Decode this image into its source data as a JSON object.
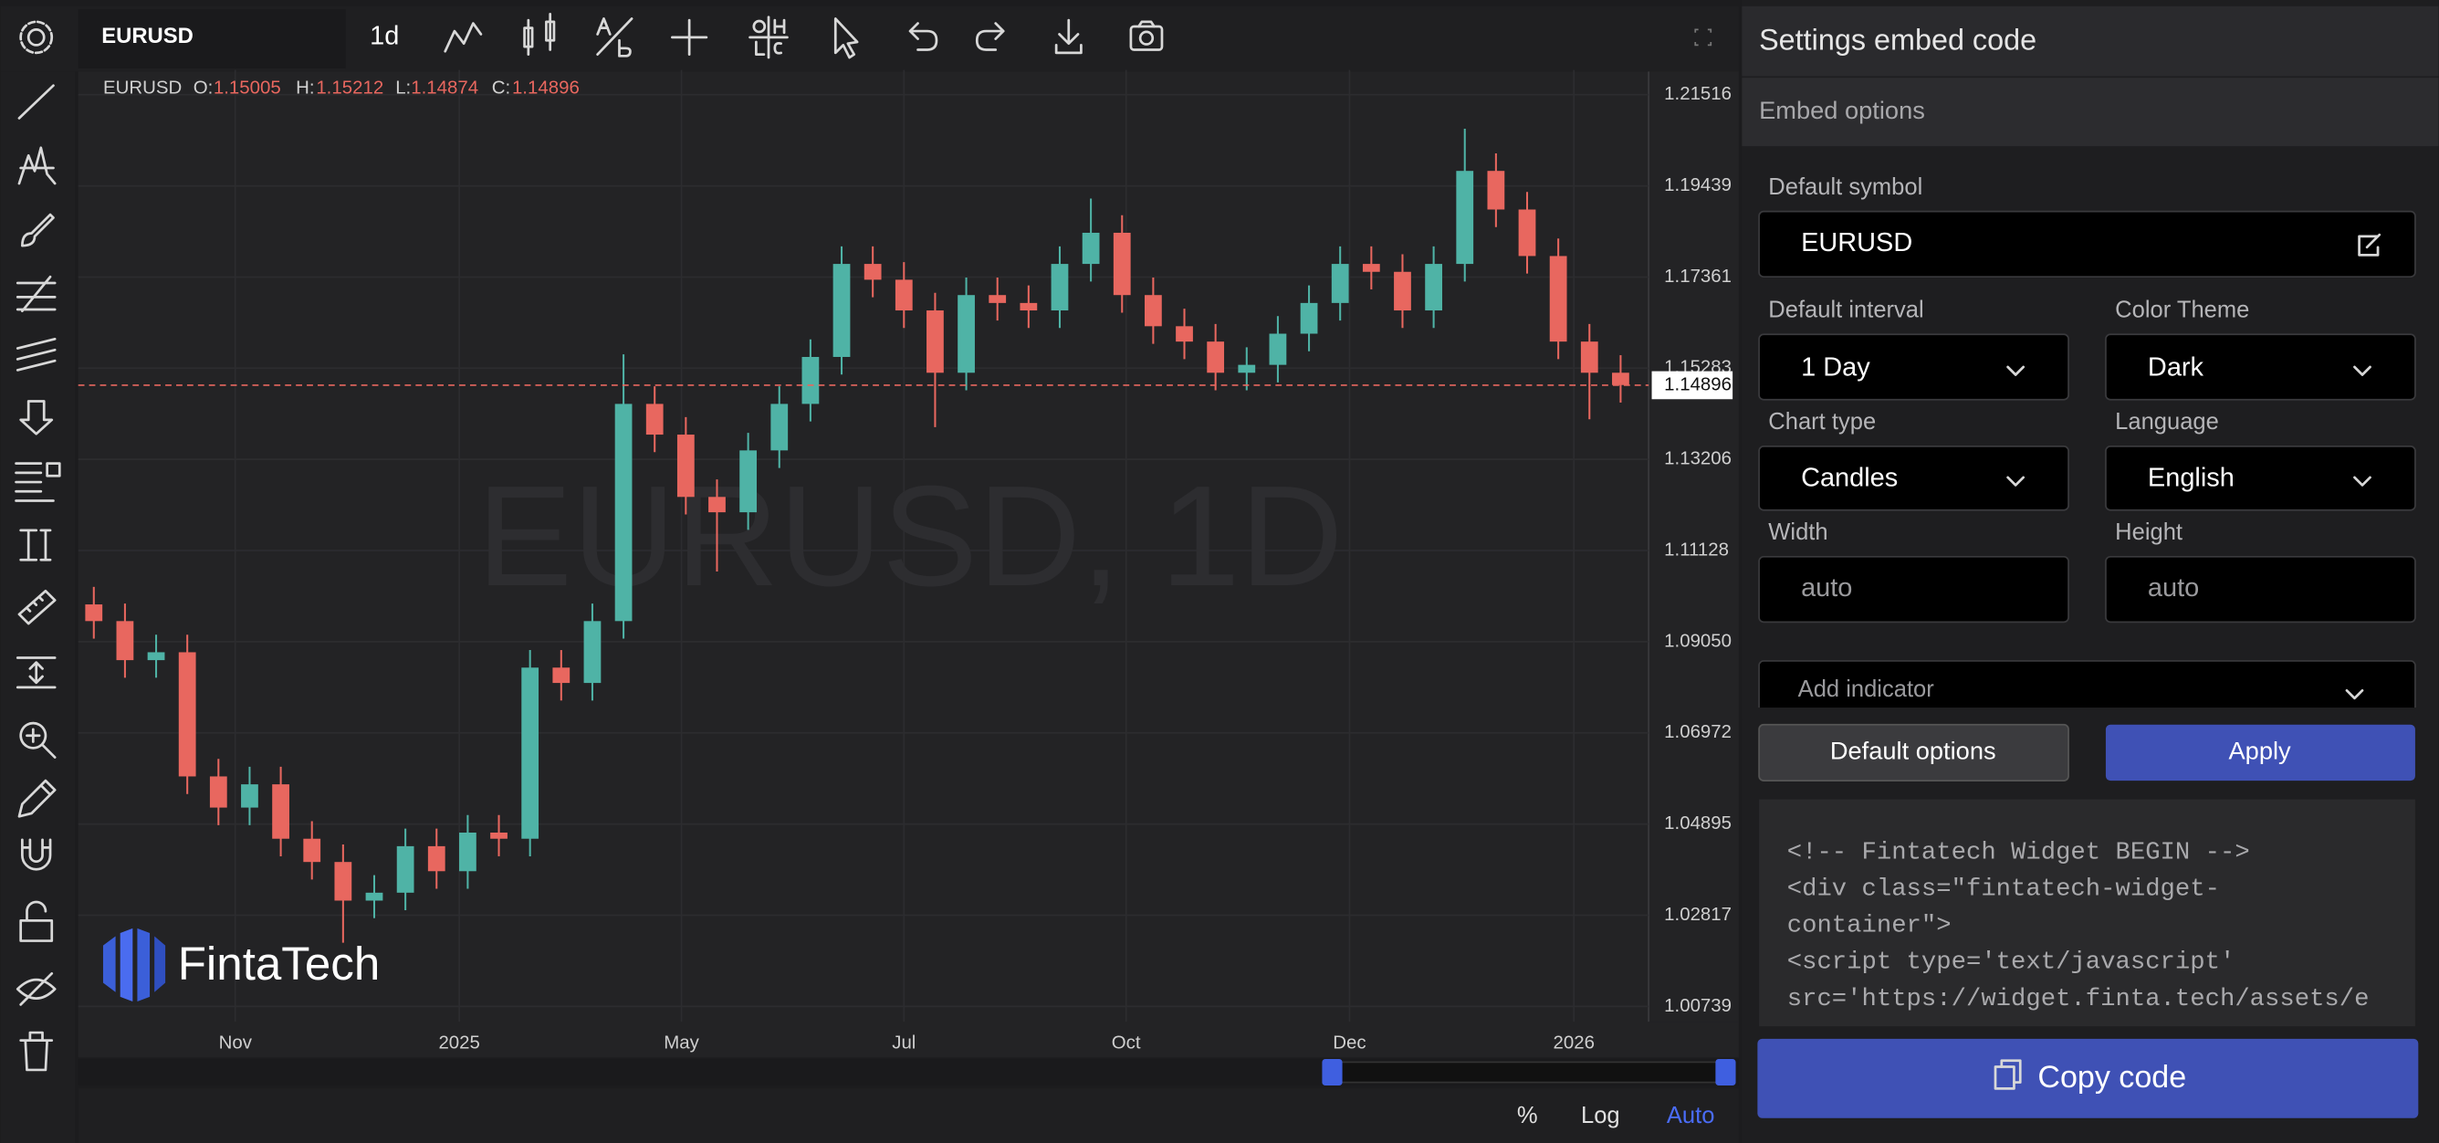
{
  "toolbar": {
    "symbol": "EURUSD",
    "interval": "1d"
  },
  "chart_data": {
    "type": "candlestick",
    "symbol": "EURUSD",
    "ohlc": [
      {
        "label": "O:",
        "value": 1.15005
      },
      {
        "label": "H:",
        "value": 1.15212
      },
      {
        "label": "L:",
        "value": 1.14874
      },
      {
        "label": "C:",
        "value": 1.14896
      }
    ],
    "watermark": "EURUSD, 1D",
    "brand": "FintaTech",
    "up_color": "#4fb3a6",
    "down_color": "#e8675f",
    "x": [
      0,
      1,
      2,
      3,
      4,
      5,
      6,
      7,
      8,
      9,
      10,
      11,
      12,
      13,
      14,
      15,
      16,
      17,
      18,
      19,
      20,
      21,
      22,
      23,
      24,
      25,
      26,
      27,
      28,
      29,
      30,
      31,
      32,
      33,
      34,
      35,
      36,
      37,
      38,
      39,
      40,
      41,
      42,
      43,
      44,
      45,
      46,
      47,
      48,
      49
    ],
    "open": [
      1.099,
      1.0952,
      1.0863,
      1.0881,
      1.0598,
      1.0527,
      1.058,
      1.0456,
      1.0403,
      1.0315,
      1.0333,
      1.0439,
      1.0382,
      1.047,
      1.0456,
      1.0846,
      1.0811,
      1.0952,
      1.1447,
      1.1377,
      1.1235,
      1.12,
      1.1341,
      1.1447,
      1.1554,
      1.1766,
      1.173,
      1.166,
      1.1518,
      1.1695,
      1.1677,
      1.166,
      1.1766,
      1.1837,
      1.1695,
      1.1624,
      1.1589,
      1.1518,
      1.1536,
      1.1607,
      1.1677,
      1.1766,
      1.1748,
      1.166,
      1.1766,
      1.1978,
      1.189,
      1.1784,
      1.1589,
      1.1518
    ],
    "high": [
      1.103,
      1.0992,
      1.0921,
      1.0921,
      1.0638,
      1.062,
      1.062,
      1.0496,
      1.0443,
      1.0373,
      1.0479,
      1.0479,
      1.051,
      1.051,
      1.0886,
      1.0886,
      1.0992,
      1.156,
      1.1487,
      1.1417,
      1.1275,
      1.1381,
      1.1487,
      1.1594,
      1.1806,
      1.1806,
      1.177,
      1.17,
      1.1735,
      1.1735,
      1.1717,
      1.1806,
      1.1915,
      1.1877,
      1.1735,
      1.1664,
      1.1629,
      1.1576,
      1.1647,
      1.1717,
      1.1806,
      1.1806,
      1.1788,
      1.1806,
      1.2074,
      1.2018,
      1.193,
      1.1824,
      1.1629,
      1.1558
    ],
    "low": [
      1.0912,
      1.0823,
      1.0823,
      1.0558,
      1.0487,
      1.0487,
      1.0416,
      1.0363,
      1.0219,
      1.0275,
      1.0293,
      1.0342,
      1.0342,
      1.0416,
      1.0416,
      1.0771,
      1.0771,
      1.0912,
      1.1337,
      1.1195,
      1.1065,
      1.116,
      1.1301,
      1.1407,
      1.1514,
      1.169,
      1.162,
      1.1394,
      1.1478,
      1.1637,
      1.162,
      1.162,
      1.1726,
      1.1655,
      1.1584,
      1.1549,
      1.1478,
      1.1478,
      1.1496,
      1.1567,
      1.1637,
      1.1708,
      1.162,
      1.162,
      1.1726,
      1.185,
      1.1744,
      1.1549,
      1.1412,
      1.145
    ],
    "close": [
      1.0952,
      1.0863,
      1.0881,
      1.0598,
      1.0527,
      1.058,
      1.0456,
      1.0403,
      1.0315,
      1.0333,
      1.0439,
      1.0382,
      1.047,
      1.0456,
      1.0846,
      1.0811,
      1.0952,
      1.1447,
      1.1377,
      1.1235,
      1.12,
      1.1341,
      1.1447,
      1.1554,
      1.1766,
      1.173,
      1.166,
      1.1518,
      1.1695,
      1.1677,
      1.166,
      1.1766,
      1.1837,
      1.1695,
      1.1624,
      1.1589,
      1.1518,
      1.1536,
      1.1607,
      1.1677,
      1.1766,
      1.1748,
      1.166,
      1.1766,
      1.1978,
      1.189,
      1.1784,
      1.1589,
      1.1518,
      1.149
    ],
    "xlim": [
      -0.5,
      49.9
    ],
    "xticks": [
      {
        "value": 4.54,
        "label": "Nov"
      },
      {
        "value": 11.73,
        "label": "2025"
      },
      {
        "value": 18.86,
        "label": "May"
      },
      {
        "value": 26.0,
        "label": "Jul"
      },
      {
        "value": 33.13,
        "label": "Oct"
      },
      {
        "value": 40.3,
        "label": "Dec"
      },
      {
        "value": 47.5,
        "label": "2026"
      }
    ],
    "ylim": [
      1.0039,
      1.2208
    ],
    "yticks": [
      1.21516,
      1.19439,
      1.17361,
      1.15283,
      1.13206,
      1.11128,
      {
        "value": 1.0905,
        "label": "1.09050"
      },
      1.06972,
      1.04895,
      1.02817,
      1.00739
    ],
    "last_price": 1.14896,
    "grid": true
  },
  "bottom_bar": {
    "percent": "%",
    "log": "Log",
    "auto": "Auto"
  },
  "settings": {
    "title": "Settings embed code",
    "section": "Embed options",
    "default_symbol": {
      "label": "Default symbol",
      "value": "EURUSD"
    },
    "default_interval": {
      "label": "Default interval",
      "value": "1 Day"
    },
    "color_theme": {
      "label": "Color Theme",
      "value": "Dark"
    },
    "chart_type": {
      "label": "Chart type",
      "value": "Candles"
    },
    "language": {
      "label": "Language",
      "value": "English"
    },
    "width": {
      "label": "Width",
      "value": "auto"
    },
    "height": {
      "label": "Height",
      "value": "auto"
    },
    "add_indicator": "Add indicator",
    "default_button": "Default options",
    "apply_button": "Apply",
    "code_lines": [
      "<!-- Fintatech Widget BEGIN -->",
      "<div class=\"fintatech-widget-",
      "container\">",
      "<script type='text/javascript'",
      "src='https://widget.finta.tech/assets/e"
    ],
    "copy_button": "Copy code"
  }
}
